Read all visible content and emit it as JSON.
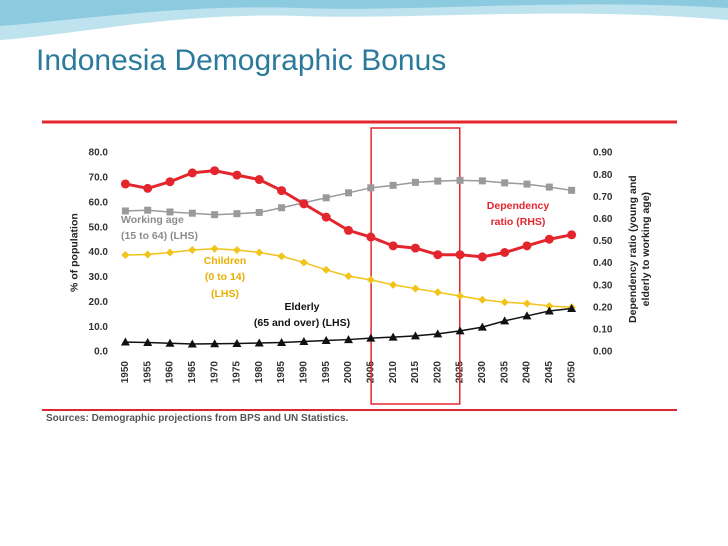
{
  "title": "Indonesia Demographic Bonus",
  "chart_data": {
    "type": "line",
    "x": [
      1950,
      1955,
      1960,
      1965,
      1970,
      1975,
      1980,
      1985,
      1990,
      1995,
      2000,
      2005,
      2010,
      2015,
      2020,
      2025,
      2030,
      2035,
      2040,
      2045,
      2050
    ],
    "xlim": [
      1947,
      2053
    ],
    "ylim": [
      0,
      80
    ],
    "yticks": [
      {
        "value": 0,
        "label": "0.0"
      },
      {
        "value": 10,
        "label": "10.0"
      },
      {
        "value": 20,
        "label": "20.0"
      },
      {
        "value": 30,
        "label": "30.0"
      },
      {
        "value": 40,
        "label": "40.0"
      },
      {
        "value": 50,
        "label": "50.0"
      },
      {
        "value": 60,
        "label": "60.0"
      },
      {
        "value": 70,
        "label": "70.0"
      },
      {
        "value": 80,
        "label": "80.0"
      }
    ],
    "y2lim": [
      0,
      0.9
    ],
    "y2ticks": [
      {
        "value": 0,
        "label": "0.00"
      },
      {
        "value": 0.1,
        "label": "0.10"
      },
      {
        "value": 0.2,
        "label": "0.20"
      },
      {
        "value": 0.3,
        "label": "0.30"
      },
      {
        "value": 0.4,
        "label": "0.40"
      },
      {
        "value": 0.5,
        "label": "0.50"
      },
      {
        "value": 0.6,
        "label": "0.60"
      },
      {
        "value": 0.7,
        "label": "0.70"
      },
      {
        "value": 0.8,
        "label": "0.80"
      },
      {
        "value": 0.9,
        "label": "0.90"
      }
    ],
    "ylabel": "% of population",
    "y2label": "Dependency ratio (young and\nelderly to working age)",
    "highlight": [
      2010,
      2020
    ],
    "source": "Sources: Demographic projections from BPS and UN Statistics.",
    "series": [
      {
        "name": "Working age\n(15 to 64) (LHS)",
        "color": "#9a9a9a",
        "marker": "square",
        "values": [
          56.7,
          57.0,
          56.3,
          55.8,
          55.2,
          55.6,
          56.1,
          58.0,
          60.0,
          62.0,
          64.0,
          66.0,
          67.0,
          68.2,
          68.7,
          69.0,
          68.8,
          68.0,
          67.5,
          66.3,
          65.0
        ]
      },
      {
        "name": "Children\n(0 to 14)\n(LHS)",
        "color": "#f2c318",
        "marker": "diamond",
        "values": [
          39.0,
          39.2,
          40.0,
          41.0,
          41.5,
          41.0,
          40.0,
          38.5,
          36.0,
          33.0,
          30.5,
          29.0,
          27.0,
          25.5,
          24.0,
          22.5,
          21.0,
          20.0,
          19.5,
          18.5,
          18.0
        ]
      },
      {
        "name": "Elderly\n(65 and over) (LHS)",
        "color": "#111111",
        "marker": "triangle",
        "values": [
          4.0,
          3.8,
          3.5,
          3.2,
          3.3,
          3.4,
          3.6,
          3.8,
          4.2,
          4.6,
          5.0,
          5.6,
          6.0,
          6.5,
          7.3,
          8.5,
          10.0,
          12.5,
          14.5,
          16.5,
          17.5
        ]
      },
      {
        "name": "Dependency\nratio (RHS)",
        "color": "#e3262e",
        "marker": "circle",
        "axis": "y2",
        "values": [
          0.76,
          0.74,
          0.77,
          0.81,
          0.82,
          0.8,
          0.78,
          0.73,
          0.67,
          0.61,
          0.55,
          0.52,
          0.48,
          0.47,
          0.44,
          0.44,
          0.43,
          0.45,
          0.48,
          0.51,
          0.53
        ]
      }
    ]
  }
}
